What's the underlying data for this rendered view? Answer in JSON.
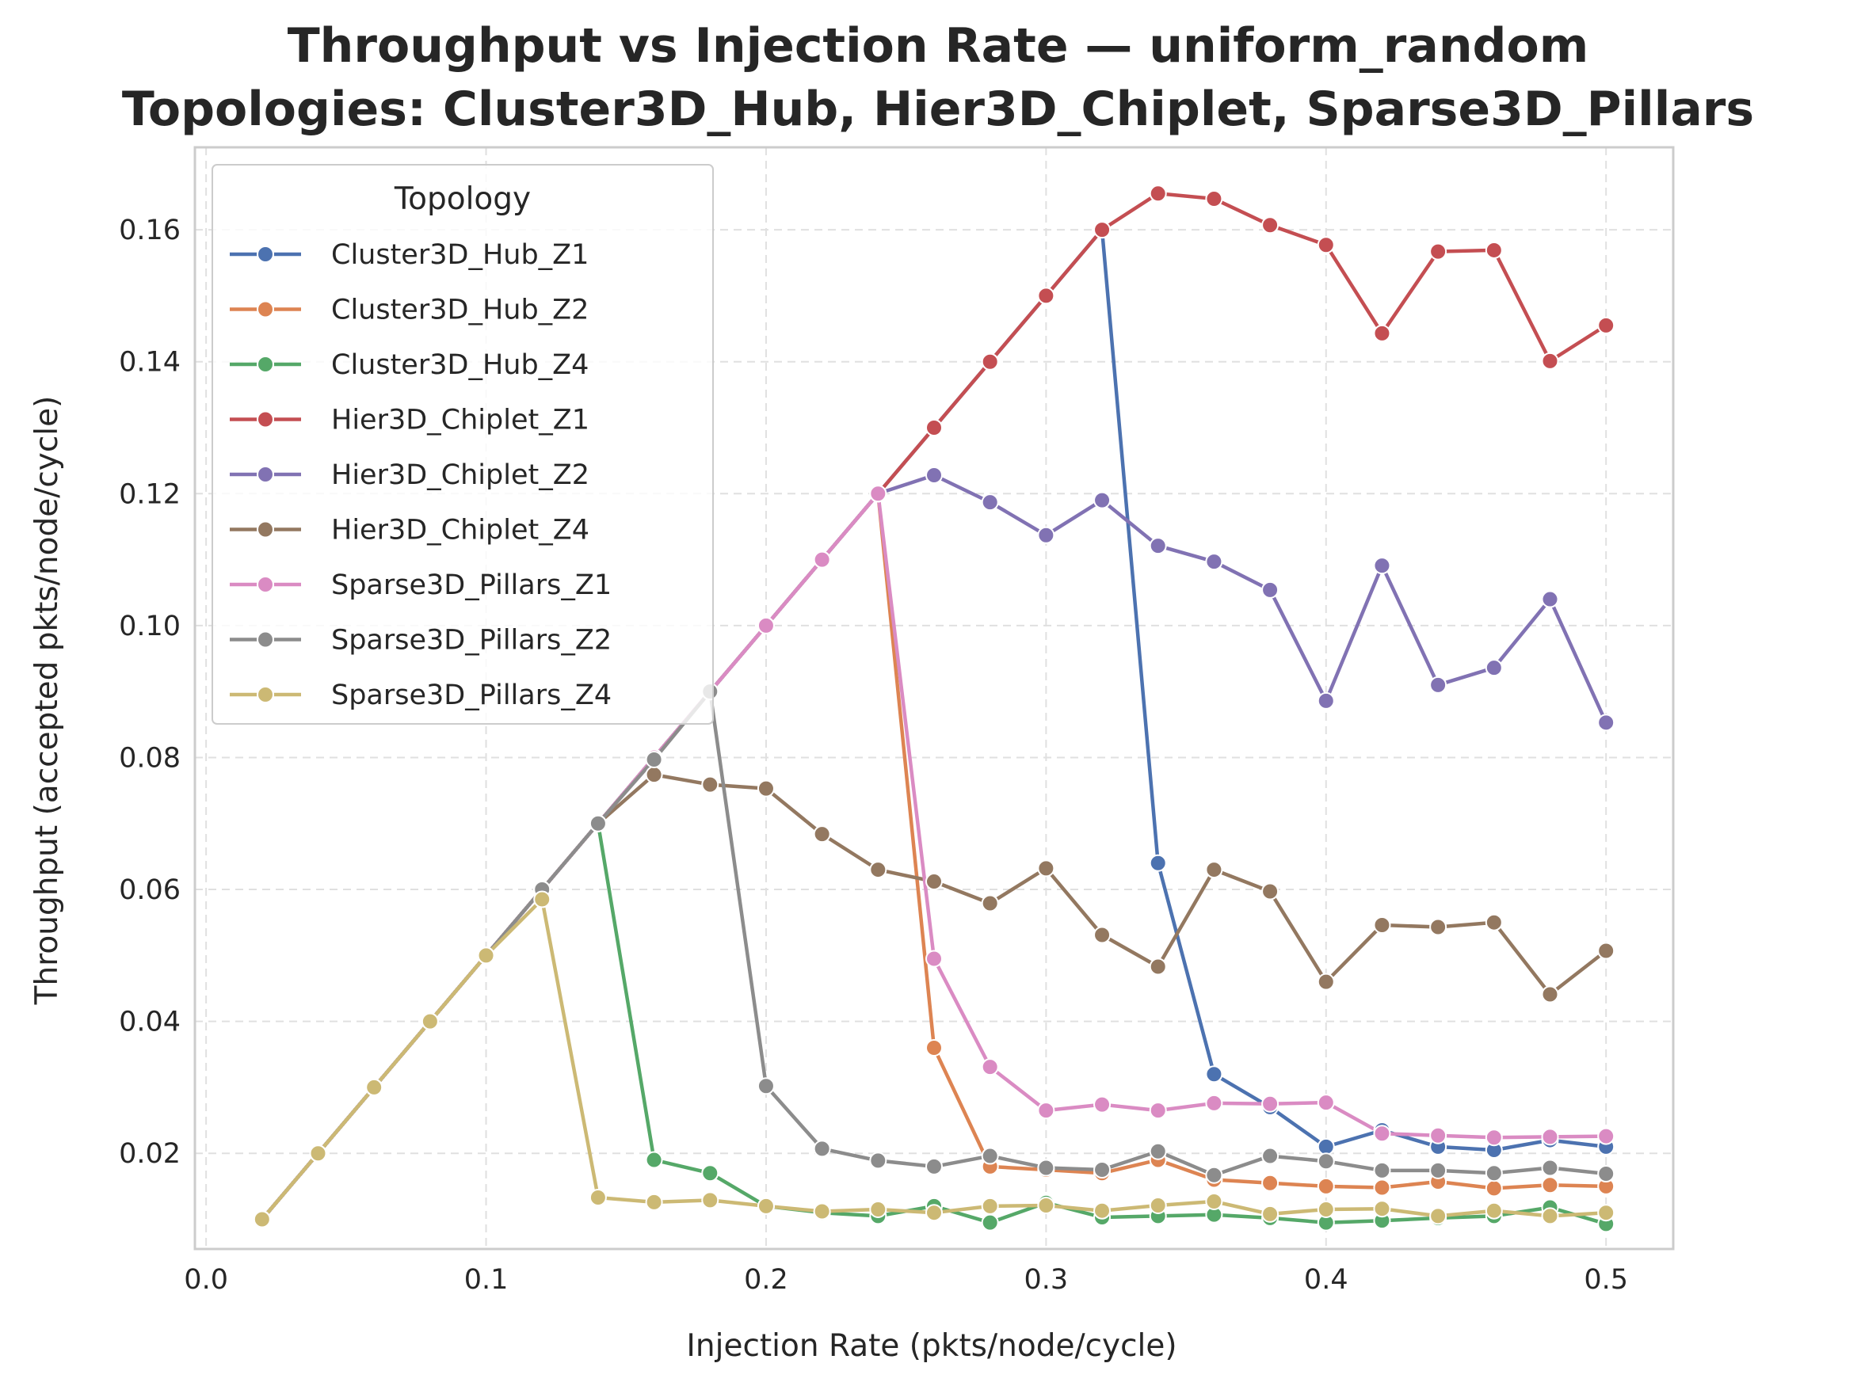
{
  "chart_data": {
    "type": "line",
    "title": "Throughput vs Injection Rate — uniform_random",
    "subtitle": "Topologies: Cluster3D_Hub, Hier3D_Chiplet, Sparse3D_Pillars",
    "xlabel": "Injection Rate (pkts/node/cycle)",
    "ylabel": "Throughput (accepted pkts/node/cycle)",
    "xlim": [
      -0.004,
      0.524
    ],
    "ylim": [
      0.0055,
      0.1725
    ],
    "xticks": [
      0.0,
      0.1,
      0.2,
      0.3,
      0.4,
      0.5
    ],
    "xtick_labels": [
      "0.0",
      "0.1",
      "0.2",
      "0.3",
      "0.4",
      "0.5"
    ],
    "yticks": [
      0.02,
      0.04,
      0.06,
      0.08,
      0.1,
      0.12,
      0.14,
      0.16
    ],
    "ytick_labels": [
      "0.02",
      "0.04",
      "0.06",
      "0.08",
      "0.10",
      "0.12",
      "0.14",
      "0.16"
    ],
    "grid": true,
    "legend": {
      "title": "Topology",
      "position": "upper-left"
    },
    "x": [
      0.02,
      0.04,
      0.06,
      0.08,
      0.1,
      0.12,
      0.14,
      0.16,
      0.18,
      0.2,
      0.22,
      0.24,
      0.26,
      0.28,
      0.3,
      0.32,
      0.34,
      0.36,
      0.38,
      0.4,
      0.42,
      0.44,
      0.46,
      0.48,
      0.5
    ],
    "series": [
      {
        "name": "Cluster3D_Hub_Z1",
        "color": "#4c72b0",
        "values": [
          0.01,
          0.02,
          0.03,
          0.04,
          0.05,
          0.06,
          0.07,
          0.08,
          0.09,
          0.1,
          0.11,
          0.12,
          0.13,
          0.14,
          0.15,
          0.16,
          0.064,
          0.032,
          0.027,
          0.021,
          0.0235,
          0.021,
          0.0205,
          0.022,
          0.021
        ]
      },
      {
        "name": "Cluster3D_Hub_Z2",
        "color": "#dd8452",
        "values": [
          0.01,
          0.02,
          0.03,
          0.04,
          0.05,
          0.06,
          0.07,
          0.08,
          0.09,
          0.1,
          0.11,
          0.12,
          0.036,
          0.018,
          0.0175,
          0.017,
          0.019,
          0.016,
          0.0155,
          0.015,
          0.0148,
          0.0157,
          0.0147,
          0.0152,
          0.015
        ]
      },
      {
        "name": "Cluster3D_Hub_Z4",
        "color": "#55a868",
        "values": [
          0.01,
          0.02,
          0.03,
          0.04,
          0.05,
          0.06,
          0.07,
          0.019,
          0.017,
          0.012,
          0.011,
          0.0105,
          0.012,
          0.0095,
          0.0125,
          0.0103,
          0.0105,
          0.0107,
          0.0102,
          0.0095,
          0.0098,
          0.0102,
          0.0105,
          0.0118,
          0.0093
        ]
      },
      {
        "name": "Hier3D_Chiplet_Z1",
        "color": "#c44e52",
        "values": [
          0.01,
          0.02,
          0.03,
          0.04,
          0.05,
          0.06,
          0.07,
          0.08,
          0.09,
          0.1,
          0.11,
          0.12,
          0.13,
          0.14,
          0.15,
          0.16,
          0.1655,
          0.1647,
          0.1607,
          0.1577,
          0.1443,
          0.1567,
          0.1569,
          0.1401,
          0.1455
        ]
      },
      {
        "name": "Hier3D_Chiplet_Z2",
        "color": "#8172b3",
        "values": [
          0.01,
          0.02,
          0.03,
          0.04,
          0.05,
          0.06,
          0.07,
          0.08,
          0.09,
          0.1,
          0.11,
          0.12,
          0.1228,
          0.1187,
          0.1137,
          0.119,
          0.1121,
          0.1097,
          0.1054,
          0.0886,
          0.1091,
          0.091,
          0.0936,
          0.104,
          0.0853
        ]
      },
      {
        "name": "Hier3D_Chiplet_Z4",
        "color": "#937860",
        "values": [
          0.01,
          0.02,
          0.03,
          0.04,
          0.05,
          0.06,
          0.07,
          0.0774,
          0.0759,
          0.0753,
          0.0684,
          0.063,
          0.0612,
          0.0579,
          0.0632,
          0.0531,
          0.0483,
          0.063,
          0.0597,
          0.046,
          0.0546,
          0.0543,
          0.055,
          0.0441,
          0.0507
        ]
      },
      {
        "name": "Sparse3D_Pillars_Z1",
        "color": "#da8bc3",
        "values": [
          0.01,
          0.02,
          0.03,
          0.04,
          0.05,
          0.06,
          0.07,
          0.08,
          0.09,
          0.1,
          0.11,
          0.12,
          0.0495,
          0.0331,
          0.0265,
          0.0274,
          0.0265,
          0.0276,
          0.0275,
          0.0277,
          0.023,
          0.0227,
          0.0224,
          0.0225,
          0.0226
        ]
      },
      {
        "name": "Sparse3D_Pillars_Z2",
        "color": "#8c8c8c",
        "values": [
          0.01,
          0.02,
          0.03,
          0.04,
          0.05,
          0.06,
          0.07,
          0.0797,
          0.09,
          0.0302,
          0.0207,
          0.0189,
          0.018,
          0.0196,
          0.0178,
          0.0175,
          0.0203,
          0.0167,
          0.0196,
          0.0188,
          0.0174,
          0.0174,
          0.017,
          0.0178,
          0.0169
        ]
      },
      {
        "name": "Sparse3D_Pillars_Z4",
        "color": "#ccb974",
        "values": [
          0.01,
          0.02,
          0.03,
          0.04,
          0.05,
          0.0585,
          0.0133,
          0.0126,
          0.0129,
          0.012,
          0.0112,
          0.0115,
          0.011,
          0.012,
          0.0121,
          0.0113,
          0.0121,
          0.0127,
          0.0108,
          0.0115,
          0.0116,
          0.0105,
          0.0113,
          0.0105,
          0.011
        ]
      }
    ]
  }
}
